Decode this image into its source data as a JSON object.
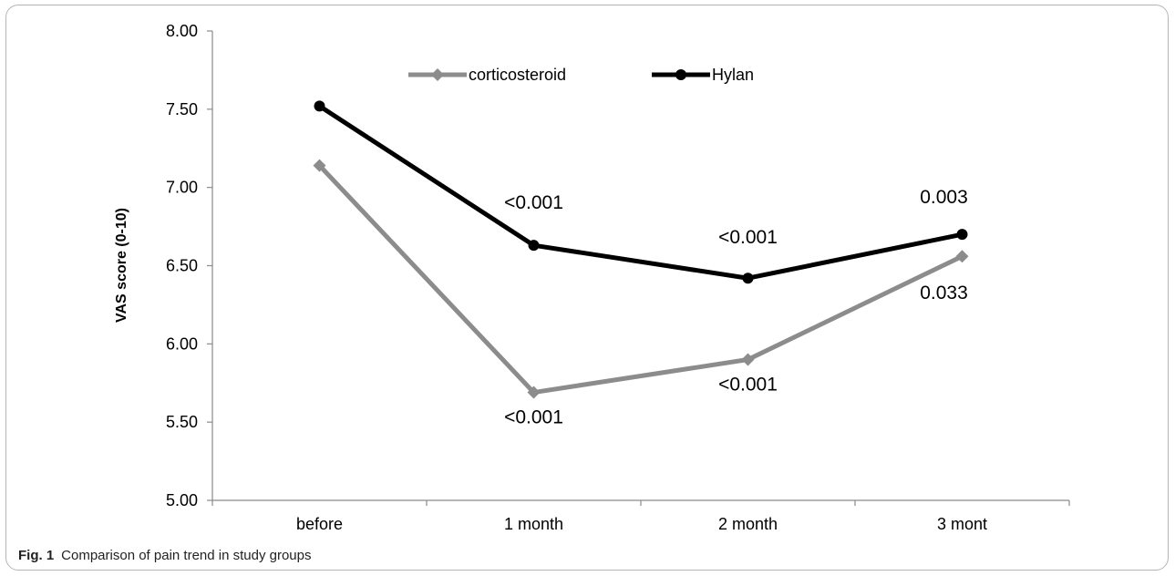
{
  "chart_data": {
    "type": "line",
    "title": "",
    "xlabel": "",
    "ylabel": "VAS score (0-10)",
    "categories": [
      "before",
      "1 month",
      "2 month",
      "3 mont"
    ],
    "ylim": [
      5.0,
      8.0
    ],
    "yticks": [
      "5.00",
      "5.50",
      "6.00",
      "6.50",
      "7.00",
      "7.50",
      "8.00"
    ],
    "grid": false,
    "legend_position": "top-center",
    "series": [
      {
        "name": "corticosteroid",
        "color": "#8c8c8c",
        "marker": "diamond",
        "values": [
          7.14,
          5.69,
          5.9,
          6.56
        ],
        "labels": [
          "",
          "<0.001",
          "<0.001",
          "0.033"
        ]
      },
      {
        "name": "Hylan",
        "color": "#000000",
        "marker": "circle",
        "values": [
          7.52,
          6.63,
          6.42,
          6.7
        ],
        "labels": [
          "",
          "<0.001",
          "<0.001",
          "0.003"
        ]
      }
    ]
  },
  "caption": {
    "label": "Fig. 1",
    "text": "Comparison of pain trend in study groups"
  }
}
